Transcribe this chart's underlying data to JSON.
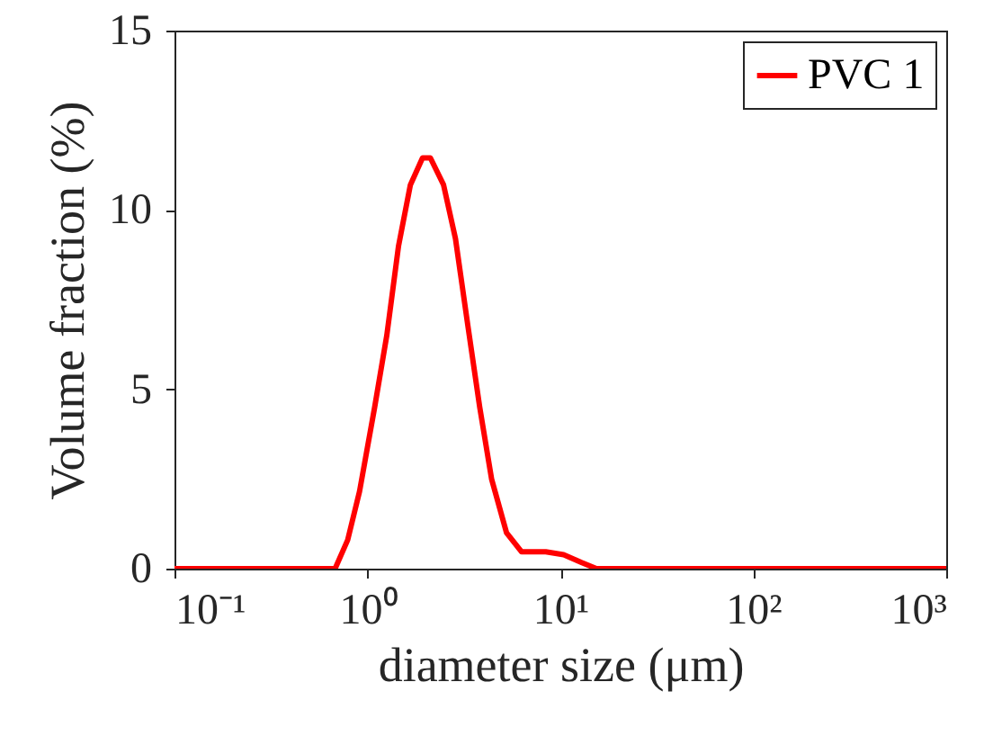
{
  "chart_data": {
    "type": "line",
    "xlabel": "diameter size (μm)",
    "ylabel": "Volume fraction (%)",
    "log": "x",
    "grid": false,
    "legend": "top right",
    "marker": "none",
    "line_style": "solid",
    "xlim": [
      0.1,
      1000
    ],
    "xticks": [
      {
        "value": 0.1,
        "label": "10⁻¹"
      },
      {
        "value": 1,
        "label": "10⁰"
      },
      {
        "value": 10,
        "label": "10¹"
      },
      {
        "value": 100,
        "label": "10²"
      },
      {
        "value": 1000,
        "label": "10³"
      }
    ],
    "ylim": [
      0,
      15
    ],
    "yticks": [
      0,
      5,
      10,
      15
    ],
    "series": [
      {
        "name": "PVC 1",
        "color": "#ff0000",
        "x": [
          0.1,
          0.68,
          0.79,
          0.91,
          1.09,
          1.26,
          1.45,
          1.67,
          1.93,
          2.12,
          2.48,
          2.86,
          3.31,
          3.82,
          4.4,
          5.26,
          6.3,
          8.4,
          10.4,
          12.9,
          15.4,
          1000
        ],
        "values": [
          0,
          0,
          0.8,
          2.15,
          4.5,
          6.5,
          9,
          10.7,
          11.45,
          11.45,
          10.7,
          9.2,
          6.8,
          4.5,
          2.5,
          1,
          0.47,
          0.47,
          0.39,
          0.17,
          0,
          0
        ]
      }
    ]
  }
}
